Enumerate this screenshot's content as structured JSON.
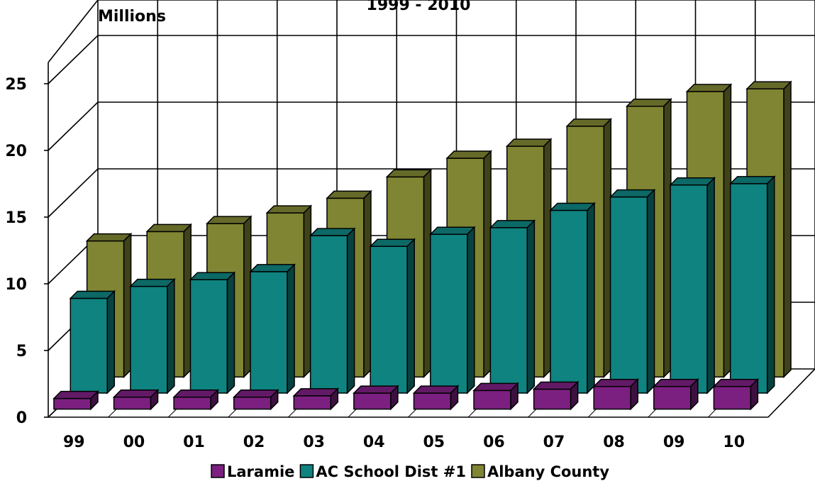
{
  "chart_data": {
    "type": "bar",
    "title": "1999 - 2010",
    "ylabel": "Millions",
    "xlabel": "",
    "ylim": [
      0,
      25
    ],
    "yticks": [
      0,
      5,
      10,
      15,
      20,
      25
    ],
    "categories": [
      "99",
      "00",
      "01",
      "02",
      "03",
      "04",
      "05",
      "06",
      "07",
      "08",
      "09",
      "10"
    ],
    "grid": true,
    "legend": "bottom",
    "series": [
      {
        "name": "Laramie",
        "color": "#7b2080",
        "values": [
          0.8,
          0.9,
          0.9,
          0.9,
          1.0,
          1.2,
          1.2,
          1.4,
          1.5,
          1.7,
          1.7,
          1.7
        ]
      },
      {
        "name": "AC School Dist #1",
        "color": "#0f8380",
        "values": [
          7.1,
          8.0,
          8.5,
          9.1,
          11.8,
          11.0,
          11.9,
          12.4,
          13.7,
          14.7,
          15.6,
          15.7
        ]
      },
      {
        "name": "Albany County",
        "color": "#808533",
        "values": [
          10.2,
          10.9,
          11.5,
          12.3,
          13.4,
          15.0,
          16.4,
          17.3,
          18.8,
          20.3,
          21.4,
          21.6
        ]
      }
    ]
  }
}
